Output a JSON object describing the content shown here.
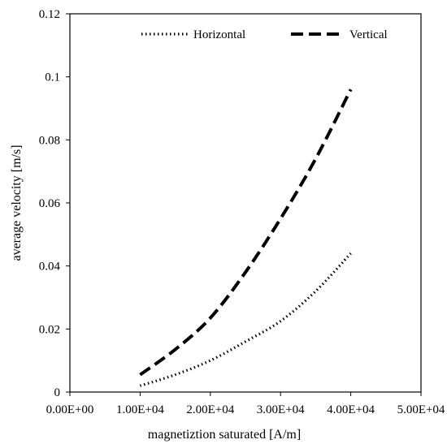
{
  "chart_data": {
    "type": "line",
    "title": "",
    "xlabel": "magnetiztion saturated [A/m]",
    "ylabel": "average velocity [m/s]",
    "xlim": [
      0,
      50000
    ],
    "ylim": [
      0,
      0.12
    ],
    "x_ticks": [
      0,
      10000,
      20000,
      30000,
      40000,
      50000
    ],
    "x_tick_labels": [
      "0.00E+00",
      "1.00E+04",
      "2.00E+04",
      "3.00E+04",
      "4.00E+04",
      "5.00E+04"
    ],
    "y_ticks": [
      0,
      0.02,
      0.04,
      0.06,
      0.08,
      0.1,
      0.12
    ],
    "y_tick_labels": [
      "0",
      "0.02",
      "0.04",
      "0.06",
      "0.08",
      "0.1",
      "0.12"
    ],
    "grid": false,
    "legend_position": "top-right",
    "series": [
      {
        "name": "Horizontal",
        "line_style": "dotted",
        "color": "#000000",
        "x": [
          10000,
          15000,
          20000,
          25000,
          30000,
          35000,
          40000
        ],
        "y": [
          0.002,
          0.0055,
          0.01,
          0.016,
          0.0225,
          0.032,
          0.044
        ]
      },
      {
        "name": "Vertical",
        "line_style": "dashed",
        "color": "#000000",
        "x": [
          10000,
          15000,
          20000,
          25000,
          30000,
          35000,
          40000
        ],
        "y": [
          0.0055,
          0.0135,
          0.0235,
          0.038,
          0.055,
          0.074,
          0.096
        ]
      }
    ]
  }
}
